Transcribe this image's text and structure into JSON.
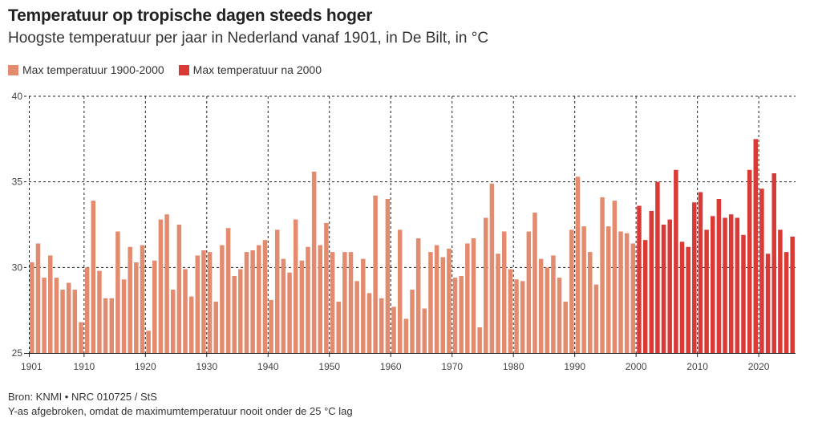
{
  "header": {
    "title": "Temperatuur op tropische dagen steeds hoger",
    "subtitle": "Hoogste temperatuur per jaar in Nederland vanaf 1901, in De Bilt, in °C"
  },
  "legend": [
    {
      "label": "Max temperatuur 1900-2000",
      "color": "#e38b6e"
    },
    {
      "label": "Max temperatuur na 2000",
      "color": "#d93a36"
    }
  ],
  "footer": {
    "source": "Bron: KNMI • NRC 010725 / StS",
    "note": "Y-as afgebroken, omdat de maximumtemperatuur nooit onder de 25 °C lag"
  },
  "chart_data": {
    "type": "bar",
    "x_start": 1901,
    "x_tick_labels": [
      "1901",
      "1910",
      "1920",
      "1930",
      "1940",
      "1950",
      "1960",
      "1970",
      "1980",
      "1990",
      "2000",
      "2010",
      "2020"
    ],
    "ylim": [
      25,
      40
    ],
    "y_ticks": [
      25,
      30,
      35,
      40
    ],
    "grid": "dashed",
    "split_year": 2000,
    "series": [
      {
        "name": "Max temperatuur 1900-2000",
        "color": "#e38b6e",
        "x": [
          1901,
          1902,
          1903,
          1904,
          1905,
          1906,
          1907,
          1908,
          1909,
          1910,
          1911,
          1912,
          1913,
          1914,
          1915,
          1916,
          1917,
          1918,
          1919,
          1920,
          1921,
          1922,
          1923,
          1924,
          1925,
          1926,
          1927,
          1928,
          1929,
          1930,
          1931,
          1932,
          1933,
          1934,
          1935,
          1936,
          1937,
          1938,
          1939,
          1940,
          1941,
          1942,
          1943,
          1944,
          1945,
          1946,
          1947,
          1948,
          1949,
          1950,
          1951,
          1952,
          1953,
          1954,
          1955,
          1956,
          1957,
          1958,
          1959,
          1960,
          1961,
          1962,
          1963,
          1964,
          1965,
          1966,
          1967,
          1968,
          1969,
          1970,
          1971,
          1972,
          1973,
          1974,
          1975,
          1976,
          1977,
          1978,
          1979,
          1980,
          1981,
          1982,
          1983,
          1984,
          1985,
          1986,
          1987,
          1988,
          1989,
          1990,
          1991,
          1992,
          1993,
          1994,
          1995,
          1996,
          1997,
          1998,
          1999
        ],
        "values": [
          30.3,
          31.4,
          29.4,
          30.7,
          29.4,
          28.7,
          29.1,
          28.7,
          26.8,
          30.0,
          33.9,
          29.8,
          28.2,
          28.2,
          32.1,
          29.3,
          31.2,
          30.3,
          31.3,
          26.3,
          30.4,
          32.8,
          33.1,
          28.7,
          32.5,
          29.9,
          28.3,
          30.7,
          31.0,
          30.9,
          28.0,
          31.3,
          32.3,
          29.5,
          29.9,
          30.9,
          31.0,
          31.3,
          31.6,
          28.1,
          32.2,
          30.5,
          29.7,
          32.8,
          30.4,
          31.2,
          35.6,
          31.3,
          32.6,
          30.9,
          28.0,
          30.9,
          30.9,
          29.2,
          30.5,
          28.5,
          34.2,
          28.2,
          34.0,
          27.7,
          32.2,
          27.0,
          28.7,
          31.7,
          27.6,
          30.9,
          31.3,
          30.6,
          31.1,
          29.4,
          29.5,
          31.4,
          31.7,
          26.5,
          32.9,
          34.9,
          30.8,
          32.1,
          29.9,
          29.3,
          29.2,
          32.1,
          33.2,
          30.5,
          30.0,
          30.7,
          29.4,
          28.0,
          32.2,
          35.3,
          32.4,
          30.9,
          29.0,
          34.1,
          32.4,
          33.9,
          32.1,
          32.0,
          31.4
        ]
      },
      {
        "name": "Max temperatuur na 2000",
        "color": "#d93a36",
        "x": [
          2000,
          2001,
          2002,
          2003,
          2004,
          2005,
          2006,
          2007,
          2008,
          2009,
          2010,
          2011,
          2012,
          2013,
          2014,
          2015,
          2016,
          2017,
          2018,
          2019,
          2020,
          2021,
          2022,
          2023,
          2024,
          2025
        ],
        "values": [
          33.6,
          31.6,
          33.3,
          35.0,
          32.5,
          32.8,
          35.7,
          31.5,
          31.2,
          33.8,
          34.4,
          32.2,
          33.0,
          34.0,
          32.9,
          33.1,
          32.9,
          31.9,
          35.7,
          37.5,
          34.6,
          30.8,
          35.5,
          32.2,
          30.9,
          31.8
        ]
      }
    ]
  }
}
